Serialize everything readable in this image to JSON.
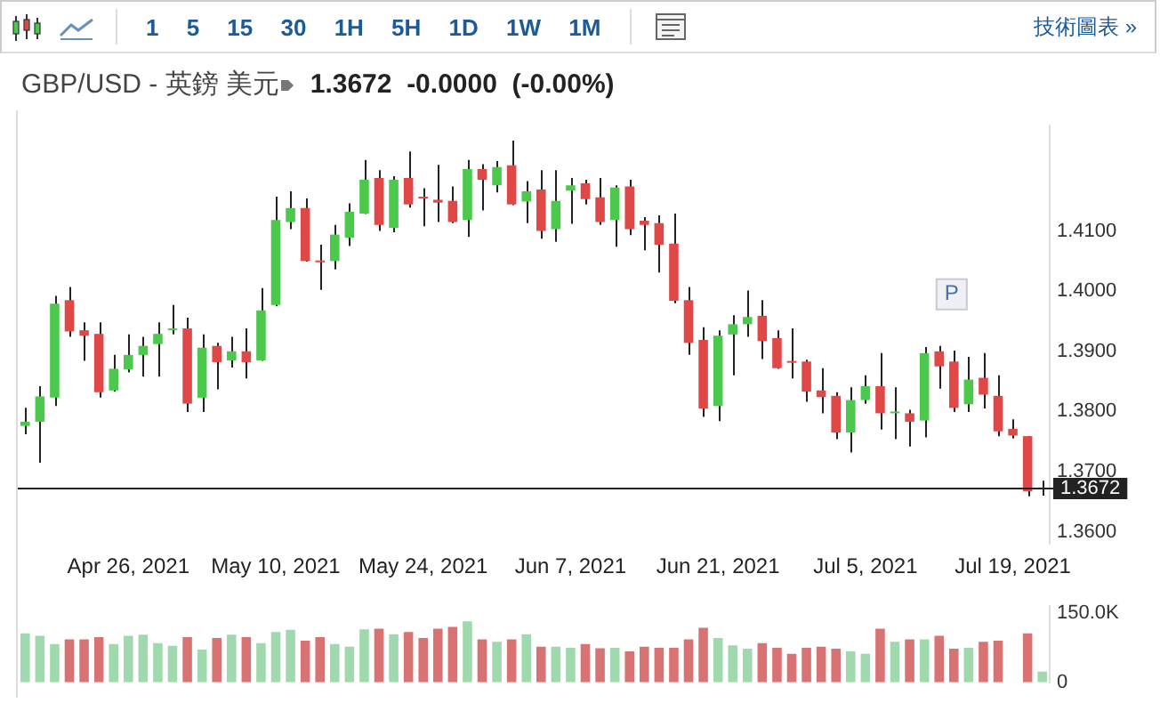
{
  "chart_data": [
    {
      "type": "candlestick",
      "title": "GBP/USD - 英鎊 美元",
      "subtitle": "1.3672  -0.0000  (-0.00%)",
      "categories": [
        null,
        null,
        null,
        null,
        null,
        null,
        null,
        "Apr 26, 2021",
        null,
        null,
        null,
        null,
        null,
        null,
        null,
        null,
        null,
        "May 10, 2021",
        null,
        null,
        null,
        null,
        null,
        null,
        null,
        null,
        null,
        "May 24, 2021",
        null,
        null,
        null,
        null,
        null,
        null,
        null,
        null,
        null,
        "Jun 7, 2021",
        null,
        null,
        null,
        null,
        null,
        null,
        null,
        null,
        null,
        "Jun 21, 2021",
        null,
        null,
        null,
        null,
        null,
        null,
        null,
        null,
        null,
        "Jul 5, 2021",
        null,
        null,
        null,
        null,
        null,
        null,
        null,
        null,
        null,
        "Jul 19, 2021",
        null,
        null
      ],
      "ohlc": [
        [
          1.3776,
          1.3806,
          1.3762,
          1.3783
        ],
        [
          1.3783,
          1.3842,
          1.3715,
          1.3825
        ],
        [
          1.3823,
          1.3992,
          1.3809,
          1.3979
        ],
        [
          1.3985,
          1.4007,
          1.3924,
          1.3933
        ],
        [
          1.3935,
          1.3948,
          1.3884,
          1.3926
        ],
        [
          1.3929,
          1.3948,
          1.3823,
          1.3832
        ],
        [
          1.3835,
          1.3894,
          1.3833,
          1.3871
        ],
        [
          1.387,
          1.3928,
          1.3865,
          1.3894
        ],
        [
          1.3894,
          1.3924,
          1.3858,
          1.3909
        ],
        [
          1.3912,
          1.3948,
          1.3858,
          1.3929
        ],
        [
          1.3935,
          1.3977,
          1.3928,
          1.3936
        ],
        [
          1.3938,
          1.3956,
          1.3799,
          1.3813
        ],
        [
          1.3823,
          1.3928,
          1.3799,
          1.3906
        ],
        [
          1.3909,
          1.3914,
          1.3837,
          1.3882
        ],
        [
          1.3885,
          1.3924,
          1.3873,
          1.39
        ],
        [
          1.39,
          1.3938,
          1.3855,
          1.3882
        ],
        [
          1.3885,
          1.4005,
          1.3884,
          1.3968
        ],
        [
          1.3977,
          1.4157,
          1.3975,
          1.4118
        ],
        [
          1.4115,
          1.4166,
          1.4103,
          1.4138
        ],
        [
          1.4138,
          1.4154,
          1.4049,
          1.405
        ],
        [
          1.4049,
          1.4077,
          1.4002,
          1.4048
        ],
        [
          1.405,
          1.411,
          1.4036,
          1.4094
        ],
        [
          1.4089,
          1.4146,
          1.4075,
          1.4132
        ],
        [
          1.4129,
          1.4218,
          1.4128,
          1.4185
        ],
        [
          1.4188,
          1.4201,
          1.41,
          1.411
        ],
        [
          1.4105,
          1.4191,
          1.4098,
          1.4185
        ],
        [
          1.4188,
          1.4232,
          1.4139,
          1.4144
        ],
        [
          1.4155,
          1.4171,
          1.4108,
          1.4154
        ],
        [
          1.4152,
          1.421,
          1.4115,
          1.4147
        ],
        [
          1.415,
          1.4174,
          1.4113,
          1.4115
        ],
        [
          1.4118,
          1.4218,
          1.409,
          1.4203
        ],
        [
          1.4203,
          1.4211,
          1.4134,
          1.4185
        ],
        [
          1.4176,
          1.4216,
          1.4164,
          1.4206
        ],
        [
          1.4209,
          1.425,
          1.4143,
          1.4144
        ],
        [
          1.4149,
          1.4183,
          1.4113,
          1.4166
        ],
        [
          1.4169,
          1.4201,
          1.4087,
          1.41
        ],
        [
          1.4103,
          1.4201,
          1.4082,
          1.415
        ],
        [
          1.4167,
          1.4188,
          1.4112,
          1.4176
        ],
        [
          1.4179,
          1.4185,
          1.4144,
          1.4153
        ],
        [
          1.4156,
          1.4188,
          1.411,
          1.4115
        ],
        [
          1.4118,
          1.4176,
          1.4074,
          1.4172
        ],
        [
          1.4174,
          1.4185,
          1.4093,
          1.4103
        ],
        [
          1.4117,
          1.4123,
          1.4068,
          1.411
        ],
        [
          1.4113,
          1.4126,
          1.4031,
          1.4077
        ],
        [
          1.4079,
          1.4129,
          1.398,
          1.3984
        ],
        [
          1.3985,
          1.4007,
          1.3894,
          1.3914
        ],
        [
          1.3919,
          1.394,
          1.3791,
          1.3805
        ],
        [
          1.3809,
          1.3935,
          1.3784,
          1.3926
        ],
        [
          1.3928,
          1.396,
          1.386,
          1.3945
        ],
        [
          1.3945,
          1.4001,
          1.3924,
          1.3957
        ],
        [
          1.3959,
          1.3985,
          1.3887,
          1.3917
        ],
        [
          1.3922,
          1.3935,
          1.3871,
          1.3872
        ],
        [
          1.3882,
          1.3938,
          1.3855,
          1.3881
        ],
        [
          1.3883,
          1.3886,
          1.3816,
          1.3833
        ],
        [
          1.3835,
          1.3872,
          1.3797,
          1.3824
        ],
        [
          1.3826,
          1.3832,
          1.3754,
          1.3765
        ],
        [
          1.3765,
          1.384,
          1.3732,
          1.3819
        ],
        [
          1.3819,
          1.386,
          1.3813,
          1.3842
        ],
        [
          1.3842,
          1.3897,
          1.377,
          1.3797
        ],
        [
          1.3797,
          1.384,
          1.3754,
          1.3798
        ],
        [
          1.3797,
          1.3803,
          1.3742,
          1.3783
        ],
        [
          1.3785,
          1.3907,
          1.3757,
          1.3897
        ],
        [
          1.39,
          1.3909,
          1.3838,
          1.3875
        ],
        [
          1.3883,
          1.3901,
          1.3799,
          1.3806
        ],
        [
          1.3812,
          1.3891,
          1.3799,
          1.3853
        ],
        [
          1.3856,
          1.3897,
          1.3805,
          1.3828
        ],
        [
          1.3826,
          1.386,
          1.3759,
          1.3767
        ],
        [
          1.3771,
          1.3787,
          1.3755,
          1.376
        ],
        [
          1.3759,
          1.3759,
          1.3659,
          1.3667
        ],
        [
          1.3671,
          1.3685,
          1.366,
          1.3672
        ]
      ],
      "colors": [
        "#4cc94c",
        "#4cc94c",
        "#4cc94c",
        "#e04848",
        "#e04848",
        "#e04848",
        "#4cc94c",
        "#4cc94c",
        "#4cc94c",
        "#4cc94c",
        "#4cc94c",
        "#e04848",
        "#4cc94c",
        "#e04848",
        "#4cc94c",
        "#e04848",
        "#4cc94c",
        "#4cc94c",
        "#4cc94c",
        "#e04848",
        "#e04848",
        "#4cc94c",
        "#4cc94c",
        "#4cc94c",
        "#e04848",
        "#4cc94c",
        "#e04848",
        "#e04848",
        "#e04848",
        "#e04848",
        "#4cc94c",
        "#e04848",
        "#4cc94c",
        "#e04848",
        "#4cc94c",
        "#e04848",
        "#4cc94c",
        "#4cc94c",
        "#e04848",
        "#e04848",
        "#4cc94c",
        "#e04848",
        "#e04848",
        "#e04848",
        "#e04848",
        "#e04848",
        "#e04848",
        "#4cc94c",
        "#4cc94c",
        "#4cc94c",
        "#e04848",
        "#e04848",
        "#e04848",
        "#e04848",
        "#e04848",
        "#e04848",
        "#4cc94c",
        "#4cc94c",
        "#e04848",
        "#4cc94c",
        "#e04848",
        "#4cc94c",
        "#e04848",
        "#e04848",
        "#4cc94c",
        "#e04848",
        "#e04848",
        "#e04848",
        "#e04848",
        "#4cc94c"
      ],
      "ylim": [
        1.358,
        1.4275
      ],
      "yticks": [
        {
          "value": 1.36,
          "label": "1.3600"
        },
        {
          "value": 1.37,
          "label": "1.3700"
        },
        {
          "value": 1.38,
          "label": "1.3800"
        },
        {
          "value": 1.39,
          "label": "1.3900"
        },
        {
          "value": 1.4,
          "label": "1.4000"
        },
        {
          "value": 1.41,
          "label": "1.4100"
        }
      ],
      "ref_lines": [
        {
          "axis": "y",
          "value": 1.3672,
          "label": "1.3672",
          "color": "#222222"
        }
      ],
      "annotations": [
        "1 5 15 30 1H 5H 1D 1W 1M",
        "技術圖表 »",
        "P"
      ],
      "grid": false,
      "legend": false
    },
    {
      "type": "bar",
      "categories": [
        null,
        null,
        null,
        null,
        null,
        null,
        null,
        null,
        null,
        null,
        null,
        null,
        null,
        null,
        null,
        null,
        null,
        null,
        null,
        null,
        null,
        null,
        null,
        null,
        null,
        null,
        null,
        null,
        null,
        null,
        null,
        null,
        null,
        null,
        null,
        null,
        null,
        null,
        null,
        null,
        null,
        null,
        null,
        null,
        null,
        null,
        null,
        null,
        null,
        null,
        null,
        null,
        null,
        null,
        null,
        null,
        null,
        null,
        null,
        null,
        null,
        null,
        null,
        null,
        null,
        null,
        null,
        null,
        null,
        null
      ],
      "values": [
        106000,
        101000,
        83000,
        93000,
        93000,
        98000,
        83000,
        101000,
        103000,
        85000,
        79000,
        98000,
        71000,
        96000,
        103000,
        98000,
        85000,
        109000,
        114000,
        90000,
        98000,
        83000,
        77000,
        115000,
        116000,
        104000,
        109000,
        96000,
        116000,
        120000,
        132000,
        93000,
        88000,
        93000,
        104000,
        77000,
        77000,
        75000,
        83000,
        74000,
        75000,
        67000,
        77000,
        75000,
        75000,
        93000,
        118000,
        96000,
        80000,
        73000,
        85000,
        75000,
        62000,
        75000,
        77000,
        73000,
        67000,
        62000,
        116000,
        88000,
        93000,
        93000,
        101000,
        73000,
        75000,
        88000,
        90000,
        null,
        106000,
        23000
      ],
      "colors": [
        "#9fd9ad",
        "#9fd9ad",
        "#9fd9ad",
        "#d97272",
        "#d97272",
        "#d97272",
        "#9fd9ad",
        "#9fd9ad",
        "#9fd9ad",
        "#9fd9ad",
        "#9fd9ad",
        "#d97272",
        "#9fd9ad",
        "#d97272",
        "#9fd9ad",
        "#d97272",
        "#9fd9ad",
        "#9fd9ad",
        "#9fd9ad",
        "#d97272",
        "#d97272",
        "#9fd9ad",
        "#9fd9ad",
        "#9fd9ad",
        "#d97272",
        "#9fd9ad",
        "#d97272",
        "#d97272",
        "#d97272",
        "#d97272",
        "#9fd9ad",
        "#d97272",
        "#9fd9ad",
        "#d97272",
        "#9fd9ad",
        "#d97272",
        "#9fd9ad",
        "#9fd9ad",
        "#d97272",
        "#d97272",
        "#9fd9ad",
        "#d97272",
        "#d97272",
        "#d97272",
        "#d97272",
        "#d97272",
        "#d97272",
        "#9fd9ad",
        "#9fd9ad",
        "#9fd9ad",
        "#d97272",
        "#d97272",
        "#d97272",
        "#d97272",
        "#d97272",
        "#d97272",
        "#9fd9ad",
        "#9fd9ad",
        "#d97272",
        "#9fd9ad",
        "#d97272",
        "#9fd9ad",
        "#d97272",
        "#d97272",
        "#9fd9ad",
        "#d97272",
        "#d97272",
        "#d97272",
        "#d97272",
        "#9fd9ad"
      ],
      "ylim": [
        0,
        165000
      ],
      "yticks": [
        {
          "value": 150000,
          "label": "150.0K"
        },
        0
      ],
      "tick_labels": "y",
      "grid": false,
      "legend": false
    }
  ]
}
